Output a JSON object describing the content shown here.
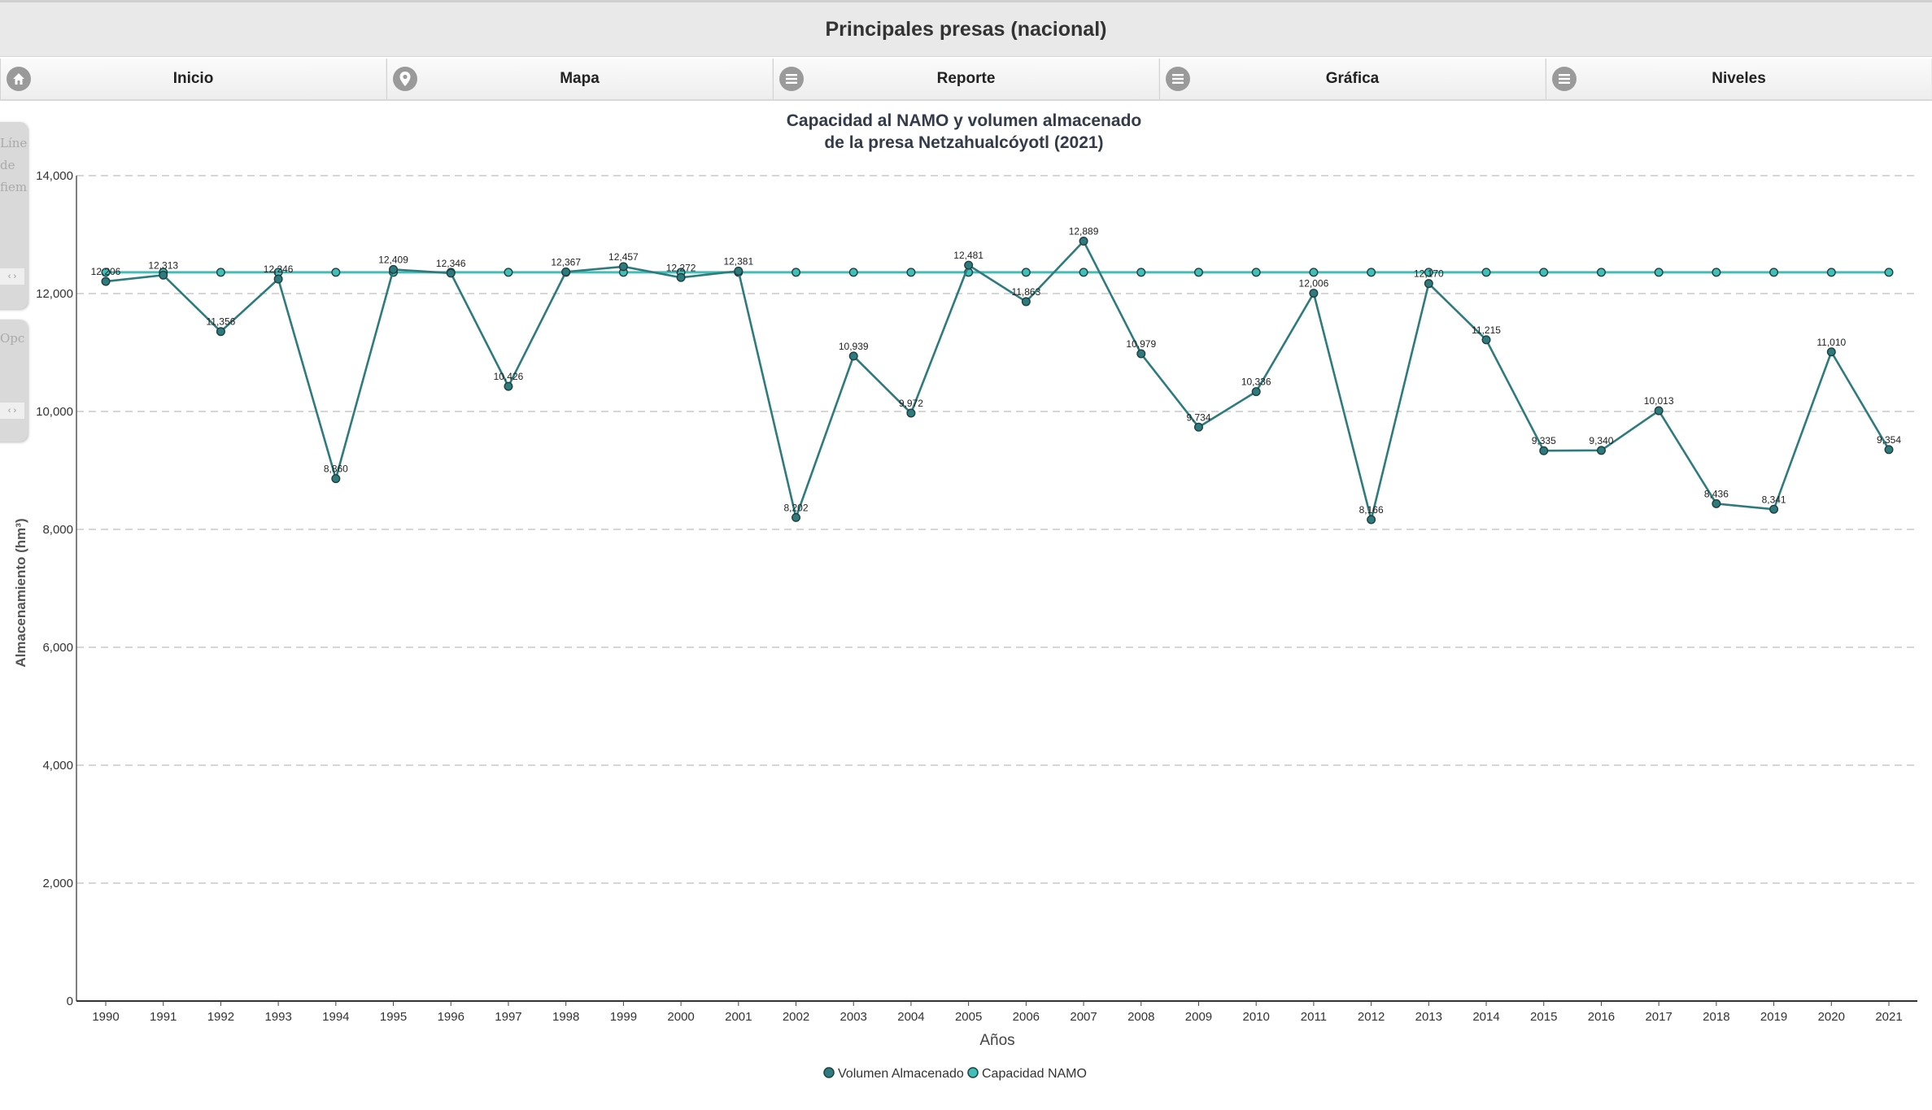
{
  "app": {
    "title": "Principales presas (nacional)"
  },
  "nav": {
    "items": [
      {
        "label": "Inicio",
        "icon": "home-icon"
      },
      {
        "label": "Mapa",
        "icon": "map-pin-icon"
      },
      {
        "label": "Reporte",
        "icon": "menu-icon"
      },
      {
        "label": "Gráfica",
        "icon": "menu-icon"
      },
      {
        "label": "Niveles",
        "icon": "menu-icon"
      }
    ]
  },
  "side_panels": [
    {
      "text": "Líne\nde\nfiem"
    },
    {
      "text": "Opc"
    }
  ],
  "colors": {
    "volumen": "#2e7b7e",
    "namo": "#3fbfb8",
    "grid": "#c8c8c8"
  },
  "chart_data": {
    "type": "line",
    "title": "Capacidad al NAMO y volumen almacenado",
    "subtitle": "de la presa Netzahualcóyotl (2021)",
    "xlabel": "Años",
    "ylabel": "Almacenamiento (hm³)",
    "ylim": [
      0,
      14000
    ],
    "yticks": [
      "0",
      "2,000",
      "4,000",
      "6,000",
      "8,000",
      "10,000",
      "12,000",
      "14,000"
    ],
    "grid": true,
    "legend_position": "bottom",
    "categories": [
      "1990",
      "1991",
      "1992",
      "1993",
      "1994",
      "1995",
      "1996",
      "1997",
      "1998",
      "1999",
      "2000",
      "2001",
      "2002",
      "2003",
      "2004",
      "2005",
      "2006",
      "2007",
      "2008",
      "2009",
      "2010",
      "2011",
      "2012",
      "2013",
      "2014",
      "2015",
      "2016",
      "2017",
      "2018",
      "2019",
      "2020",
      "2021"
    ],
    "series": [
      {
        "name": "Volumen Almacenado",
        "values": [
          12206,
          12313,
          11356,
          12246,
          8860,
          12409,
          12346,
          10426,
          12367,
          12457,
          12272,
          12381,
          8202,
          10939,
          9972,
          12481,
          11863,
          12889,
          10979,
          9734,
          10336,
          12006,
          8166,
          12170,
          11215,
          9335,
          9340,
          10013,
          8436,
          8341,
          11010,
          9354
        ],
        "labels": [
          "12,206",
          "12,313",
          "11,356",
          "12,246",
          "8,860",
          "12,409",
          "12,346",
          "10,426",
          "12,367",
          "12,457",
          "12,272",
          "12,381",
          "8,202",
          "10,939",
          "9,972",
          "12,481",
          "11,863",
          "12,889",
          "10,979",
          "9,734",
          "10,336",
          "12,006",
          "8,166",
          "12,170",
          "11,215",
          "9,335",
          "9,340",
          "10,013",
          "8,436",
          "8,341",
          "11,010",
          "9,354"
        ]
      },
      {
        "name": "Capacidad NAMO",
        "values": [
          12360,
          12360,
          12360,
          12360,
          12360,
          12360,
          12360,
          12360,
          12360,
          12360,
          12360,
          12360,
          12360,
          12360,
          12360,
          12360,
          12360,
          12360,
          12360,
          12360,
          12360,
          12360,
          12360,
          12360,
          12360,
          12360,
          12360,
          12360,
          12360,
          12360,
          12360,
          12360
        ]
      }
    ]
  }
}
